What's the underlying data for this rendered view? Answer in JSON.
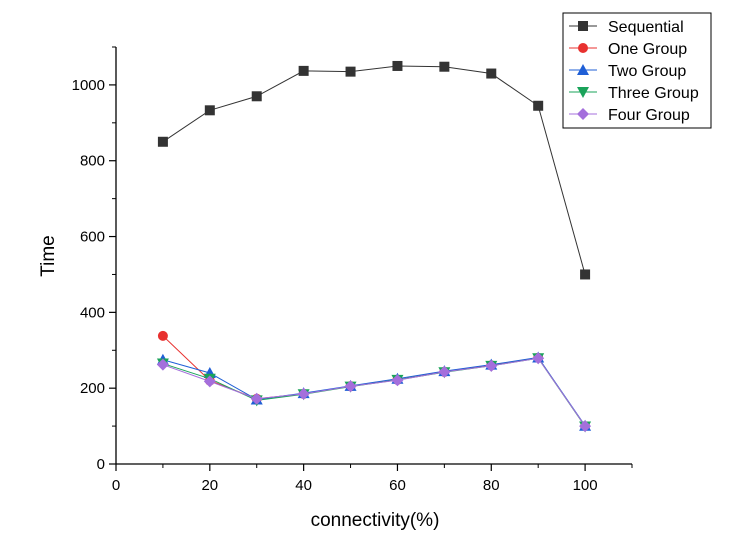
{
  "chart_data": {
    "type": "line",
    "title": "",
    "xlabel": "connectivity(%)",
    "ylabel": "Time",
    "xlim": [
      0,
      110
    ],
    "ylim": [
      0,
      1100
    ],
    "x_ticks": [
      0,
      20,
      40,
      60,
      80,
      100
    ],
    "y_ticks": [
      0,
      200,
      400,
      600,
      800,
      1000
    ],
    "grid": false,
    "legend_position": "top-right",
    "x": [
      10,
      20,
      30,
      40,
      50,
      60,
      70,
      80,
      90,
      100
    ],
    "series": [
      {
        "name": "Sequential",
        "color": "#333333",
        "marker": "square",
        "values": [
          850,
          933,
          970,
          1037,
          1035,
          1050,
          1048,
          1030,
          945,
          500
        ]
      },
      {
        "name": "One Group",
        "color": "#e8312f",
        "marker": "circle",
        "values": [
          338,
          220,
          172,
          185,
          205,
          222,
          243,
          260,
          280,
          100
        ]
      },
      {
        "name": "Two Group",
        "color": "#1f5fd6",
        "marker": "triangle-up",
        "values": [
          275,
          240,
          170,
          187,
          206,
          225,
          245,
          262,
          281,
          101
        ]
      },
      {
        "name": "Three Group",
        "color": "#1aa35a",
        "marker": "triangle-down",
        "values": [
          265,
          225,
          168,
          184,
          204,
          222,
          242,
          259,
          279,
          99
        ]
      },
      {
        "name": "Four Group",
        "color": "#a46fdc",
        "marker": "diamond",
        "values": [
          262,
          218,
          172,
          185,
          205,
          221,
          243,
          259,
          279,
          100
        ]
      }
    ]
  }
}
